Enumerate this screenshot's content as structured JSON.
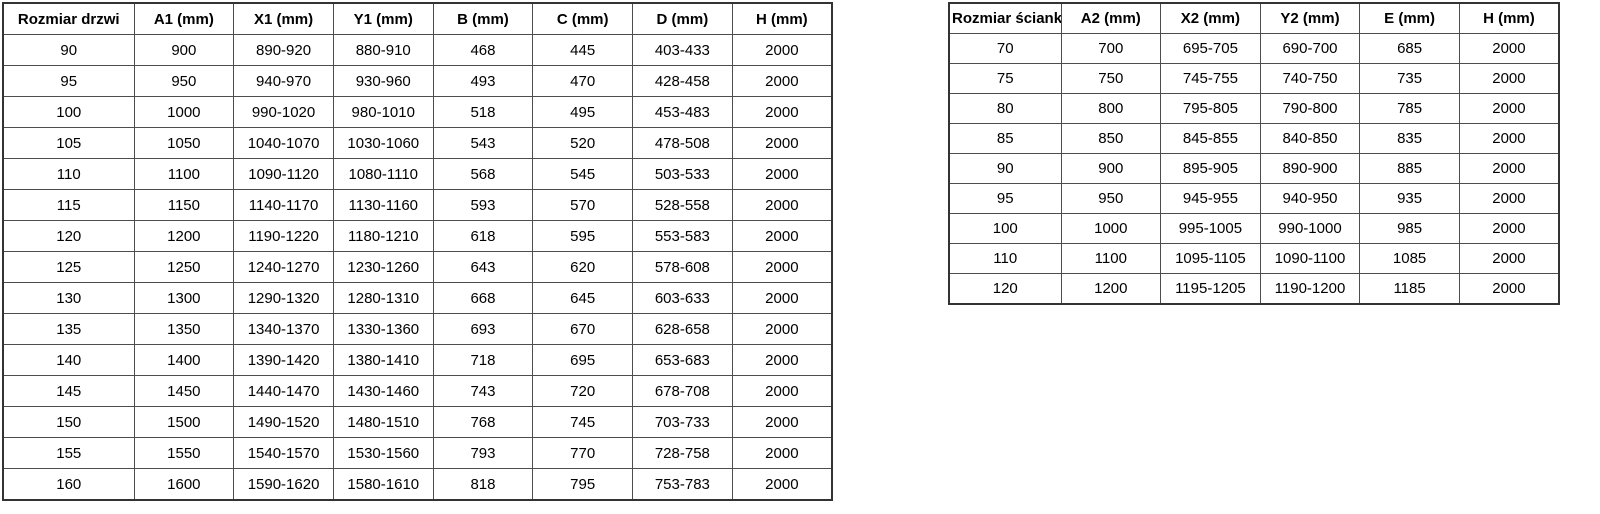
{
  "colors": {
    "background": "#ffffff",
    "text": "#000000",
    "table_border": "#4d4d4d",
    "table_outer_border": "#333333"
  },
  "door_table": {
    "headers": [
      "Rozmiar drzwi",
      "A1 (mm)",
      "X1 (mm)",
      "Y1 (mm)",
      "B (mm)",
      "C (mm)",
      "D (mm)",
      "H (mm)"
    ],
    "rows": [
      [
        "90",
        "900",
        "890-920",
        "880-910",
        "468",
        "445",
        "403-433",
        "2000"
      ],
      [
        "95",
        "950",
        "940-970",
        "930-960",
        "493",
        "470",
        "428-458",
        "2000"
      ],
      [
        "100",
        "1000",
        "990-1020",
        "980-1010",
        "518",
        "495",
        "453-483",
        "2000"
      ],
      [
        "105",
        "1050",
        "1040-1070",
        "1030-1060",
        "543",
        "520",
        "478-508",
        "2000"
      ],
      [
        "110",
        "1100",
        "1090-1120",
        "1080-1110",
        "568",
        "545",
        "503-533",
        "2000"
      ],
      [
        "115",
        "1150",
        "1140-1170",
        "1130-1160",
        "593",
        "570",
        "528-558",
        "2000"
      ],
      [
        "120",
        "1200",
        "1190-1220",
        "1180-1210",
        "618",
        "595",
        "553-583",
        "2000"
      ],
      [
        "125",
        "1250",
        "1240-1270",
        "1230-1260",
        "643",
        "620",
        "578-608",
        "2000"
      ],
      [
        "130",
        "1300",
        "1290-1320",
        "1280-1310",
        "668",
        "645",
        "603-633",
        "2000"
      ],
      [
        "135",
        "1350",
        "1340-1370",
        "1330-1360",
        "693",
        "670",
        "628-658",
        "2000"
      ],
      [
        "140",
        "1400",
        "1390-1420",
        "1380-1410",
        "718",
        "695",
        "653-683",
        "2000"
      ],
      [
        "145",
        "1450",
        "1440-1470",
        "1430-1460",
        "743",
        "720",
        "678-708",
        "2000"
      ],
      [
        "150",
        "1500",
        "1490-1520",
        "1480-1510",
        "768",
        "745",
        "703-733",
        "2000"
      ],
      [
        "155",
        "1550",
        "1540-1570",
        "1530-1560",
        "793",
        "770",
        "728-758",
        "2000"
      ],
      [
        "160",
        "1600",
        "1590-1620",
        "1580-1610",
        "818",
        "795",
        "753-783",
        "2000"
      ]
    ]
  },
  "wall_table": {
    "headers": [
      "Rozmiar ścianki",
      "A2 (mm)",
      "X2 (mm)",
      "Y2 (mm)",
      "E (mm)",
      "H (mm)"
    ],
    "rows": [
      [
        "70",
        "700",
        "695-705",
        "690-700",
        "685",
        "2000"
      ],
      [
        "75",
        "750",
        "745-755",
        "740-750",
        "735",
        "2000"
      ],
      [
        "80",
        "800",
        "795-805",
        "790-800",
        "785",
        "2000"
      ],
      [
        "85",
        "850",
        "845-855",
        "840-850",
        "835",
        "2000"
      ],
      [
        "90",
        "900",
        "895-905",
        "890-900",
        "885",
        "2000"
      ],
      [
        "95",
        "950",
        "945-955",
        "940-950",
        "935",
        "2000"
      ],
      [
        "100",
        "1000",
        "995-1005",
        "990-1000",
        "985",
        "2000"
      ],
      [
        "110",
        "1100",
        "1095-1105",
        "1090-1100",
        "1085",
        "2000"
      ],
      [
        "120",
        "1200",
        "1195-1205",
        "1190-1200",
        "1185",
        "2000"
      ]
    ]
  }
}
